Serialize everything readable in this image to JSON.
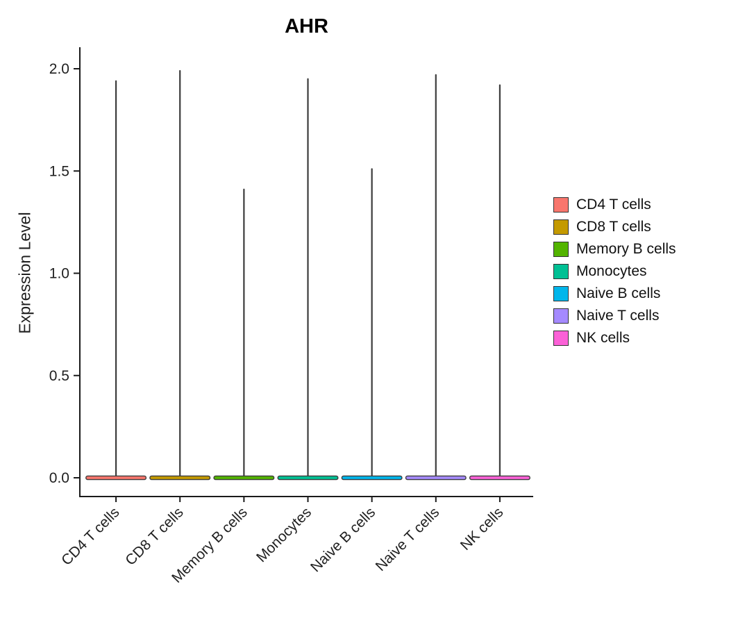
{
  "chart_data": {
    "type": "violin",
    "title": "AHR",
    "ylabel": "Expression Level",
    "xlabel": "",
    "categories": [
      "CD4 T cells",
      "CD8 T cells",
      "Memory B cells",
      "Monocytes",
      "Naive B cells",
      "Naive T cells",
      "NK cells"
    ],
    "series": [
      {
        "name": "max_expression_level",
        "values": [
          1.94,
          1.99,
          1.41,
          1.95,
          1.51,
          1.97,
          1.92
        ]
      }
    ],
    "baseline_value": 0.0,
    "ylim": [
      0.0,
      2.0
    ],
    "ytick_values": [
      2.0,
      1.5,
      1.0,
      0.5,
      0.0
    ],
    "ytick_labels": [
      "2.0",
      "1.5",
      "1.0",
      "0.5",
      "0.0"
    ],
    "grid": false,
    "axis_color": "#1a1a1a",
    "tick_label_color": "#1f1f1f",
    "violin_outline_color": "#3c3c3c",
    "legend": {
      "position": "right",
      "entries": [
        {
          "label": "CD4 T cells",
          "color": "#F8766D"
        },
        {
          "label": "CD8 T cells",
          "color": "#C49A00"
        },
        {
          "label": "Memory B cells",
          "color": "#53B400"
        },
        {
          "label": "Monocytes",
          "color": "#00C094"
        },
        {
          "label": "Naive B cells",
          "color": "#00B6EB"
        },
        {
          "label": "Naive T cells",
          "color": "#A58AFF"
        },
        {
          "label": "NK cells",
          "color": "#FB61D7"
        }
      ]
    }
  }
}
